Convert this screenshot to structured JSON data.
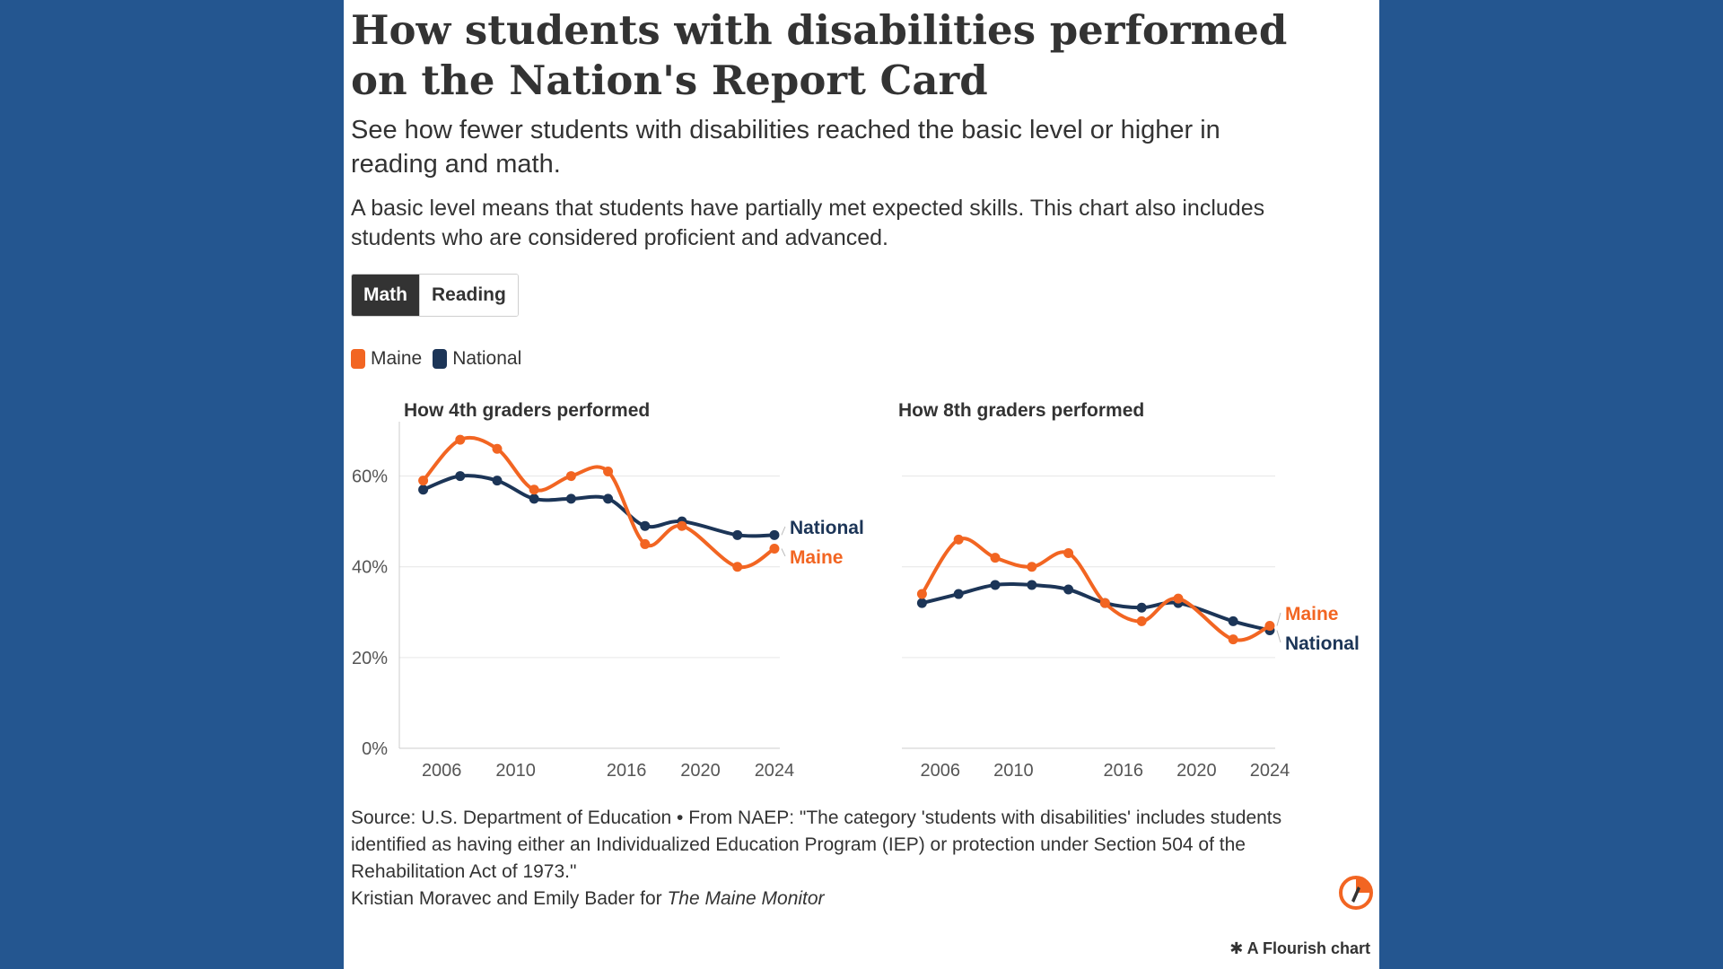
{
  "header": {
    "title": "How students with disabilities performed on the Nation's Report Card",
    "subtitle": "See how fewer students with disabilities reached the basic level or higher in reading and math.",
    "note": "A basic level means that students have partially met expected skills. This chart also includes students who are considered proficient and advanced."
  },
  "toggle": {
    "math_label": "Math",
    "reading_label": "Reading",
    "selected": "Math"
  },
  "legend": [
    {
      "name": "Maine",
      "color": "#f26522"
    },
    {
      "name": "National",
      "color": "#1c3557"
    }
  ],
  "chart_data": [
    {
      "type": "line",
      "title": "How 4th graders performed",
      "xlabel": "",
      "ylabel": "",
      "x": [
        2005,
        2007,
        2009,
        2011,
        2013,
        2015,
        2017,
        2019,
        2022,
        2024
      ],
      "xticks": [
        2006,
        2010,
        2016,
        2020,
        2024
      ],
      "xtick_labels": [
        "2006",
        "2010",
        "2016",
        "2020",
        "2024"
      ],
      "ylim": [
        0,
        70
      ],
      "yticks": [
        0,
        20,
        40,
        60
      ],
      "ytick_labels": [
        "0%",
        "20%",
        "40%",
        "60%"
      ],
      "grid": true,
      "series": [
        {
          "name": "Maine",
          "color": "#f26522",
          "values": [
            59,
            68,
            66,
            57,
            60,
            61,
            45,
            49,
            40,
            44
          ]
        },
        {
          "name": "National",
          "color": "#1c3557",
          "values": [
            57,
            60,
            59,
            55,
            55,
            55,
            49,
            50,
            47,
            47
          ]
        }
      ],
      "end_labels": [
        {
          "text": "National",
          "color": "#1c3557"
        },
        {
          "text": "Maine",
          "color": "#f26522"
        }
      ]
    },
    {
      "type": "line",
      "title": "How 8th graders performed",
      "xlabel": "",
      "ylabel": "",
      "x": [
        2005,
        2007,
        2009,
        2011,
        2013,
        2015,
        2017,
        2019,
        2022,
        2024
      ],
      "xticks": [
        2006,
        2010,
        2016,
        2020,
        2024
      ],
      "xtick_labels": [
        "2006",
        "2010",
        "2016",
        "2020",
        "2024"
      ],
      "ylim": [
        0,
        70
      ],
      "yticks": [
        0,
        20,
        40,
        60
      ],
      "grid": true,
      "series": [
        {
          "name": "Maine",
          "color": "#f26522",
          "values": [
            34,
            46,
            42,
            40,
            43,
            32,
            28,
            33,
            24,
            27
          ]
        },
        {
          "name": "National",
          "color": "#1c3557",
          "values": [
            32,
            34,
            36,
            36,
            35,
            32,
            31,
            32,
            28,
            26
          ]
        }
      ],
      "end_labels": [
        {
          "text": "Maine",
          "color": "#f26522"
        },
        {
          "text": "National",
          "color": "#1c3557"
        }
      ]
    }
  ],
  "footer": {
    "source": "Source: U.S. Department of Education • From NAEP: \"The category 'students with disabilities' includes students identified as having either an Individualized Education Program (IEP) or protection under Section 504 of the Rehabilitation Act of 1973.\"",
    "credit_prefix": "Kristian Moravec and Emily Bader for ",
    "credit_publication": "The Maine Monitor",
    "flourish_label": "A Flourish chart"
  },
  "icons": {
    "logo": "maine-monitor-logo-icon",
    "flourish": "flourish-asterisk-icon"
  }
}
